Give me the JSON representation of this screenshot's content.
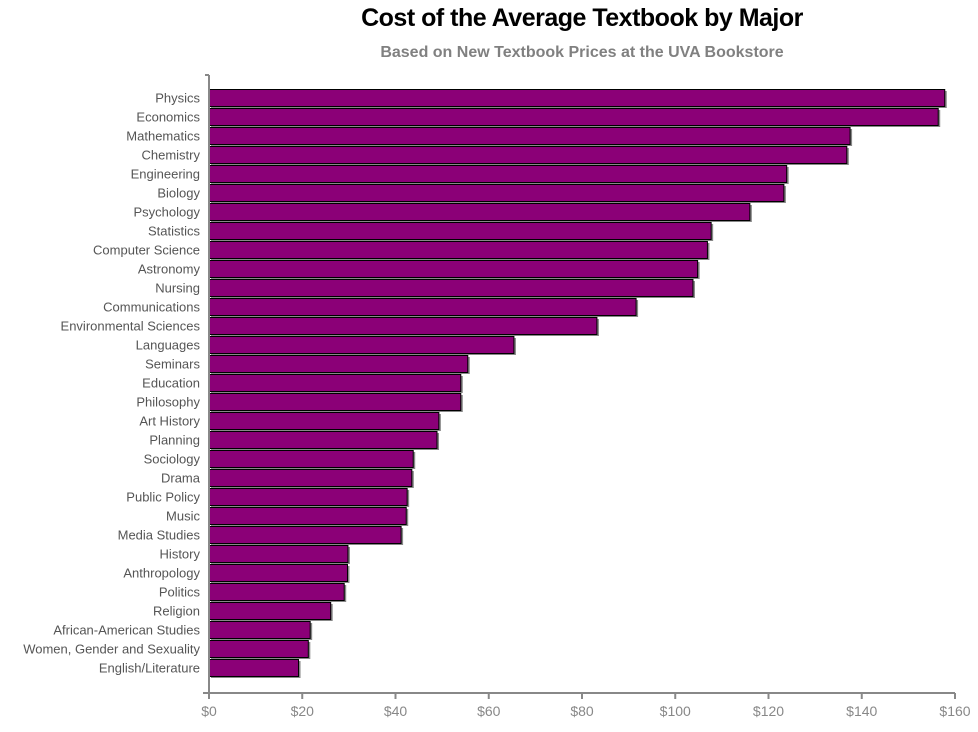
{
  "chart_data": {
    "type": "bar",
    "orientation": "horizontal",
    "title": "Cost of the Average Textbook by Major",
    "subtitle": "Based on New Textbook Prices at the UVA Bookstore",
    "xlabel": "",
    "ylabel": "",
    "xlim": [
      0,
      160
    ],
    "x_ticks": [
      "$0",
      "$20",
      "$40",
      "$60",
      "$80",
      "$100",
      "$120",
      "$140",
      "$160"
    ],
    "grid": false,
    "bar_color": "#8b0077",
    "categories": [
      "Physics",
      "Economics",
      "Mathematics",
      "Chemistry",
      "Engineering",
      "Biology",
      "Psychology",
      "Statistics",
      "Computer Science",
      "Astronomy",
      "Nursing",
      "Communications",
      "Environmental Sciences",
      "Languages",
      "Seminars",
      "Education",
      "Philosophy",
      "Art History",
      "Planning",
      "Sociology",
      "Drama",
      "Public Policy",
      "Music",
      "Media Studies",
      "History",
      "Anthropology",
      "Politics",
      "Religion",
      "African-American Studies",
      "Women, Gender and Sexuality",
      "English/Literature"
    ],
    "values": [
      157.8,
      156.4,
      137.5,
      136.8,
      123.9,
      123.3,
      116.0,
      107.7,
      106.9,
      104.8,
      103.8,
      91.6,
      83.2,
      65.4,
      55.5,
      54.0,
      54.0,
      49.3,
      48.9,
      43.8,
      43.5,
      42.5,
      42.3,
      41.2,
      29.8,
      29.7,
      29.0,
      26.1,
      21.7,
      21.3,
      19.2
    ]
  }
}
